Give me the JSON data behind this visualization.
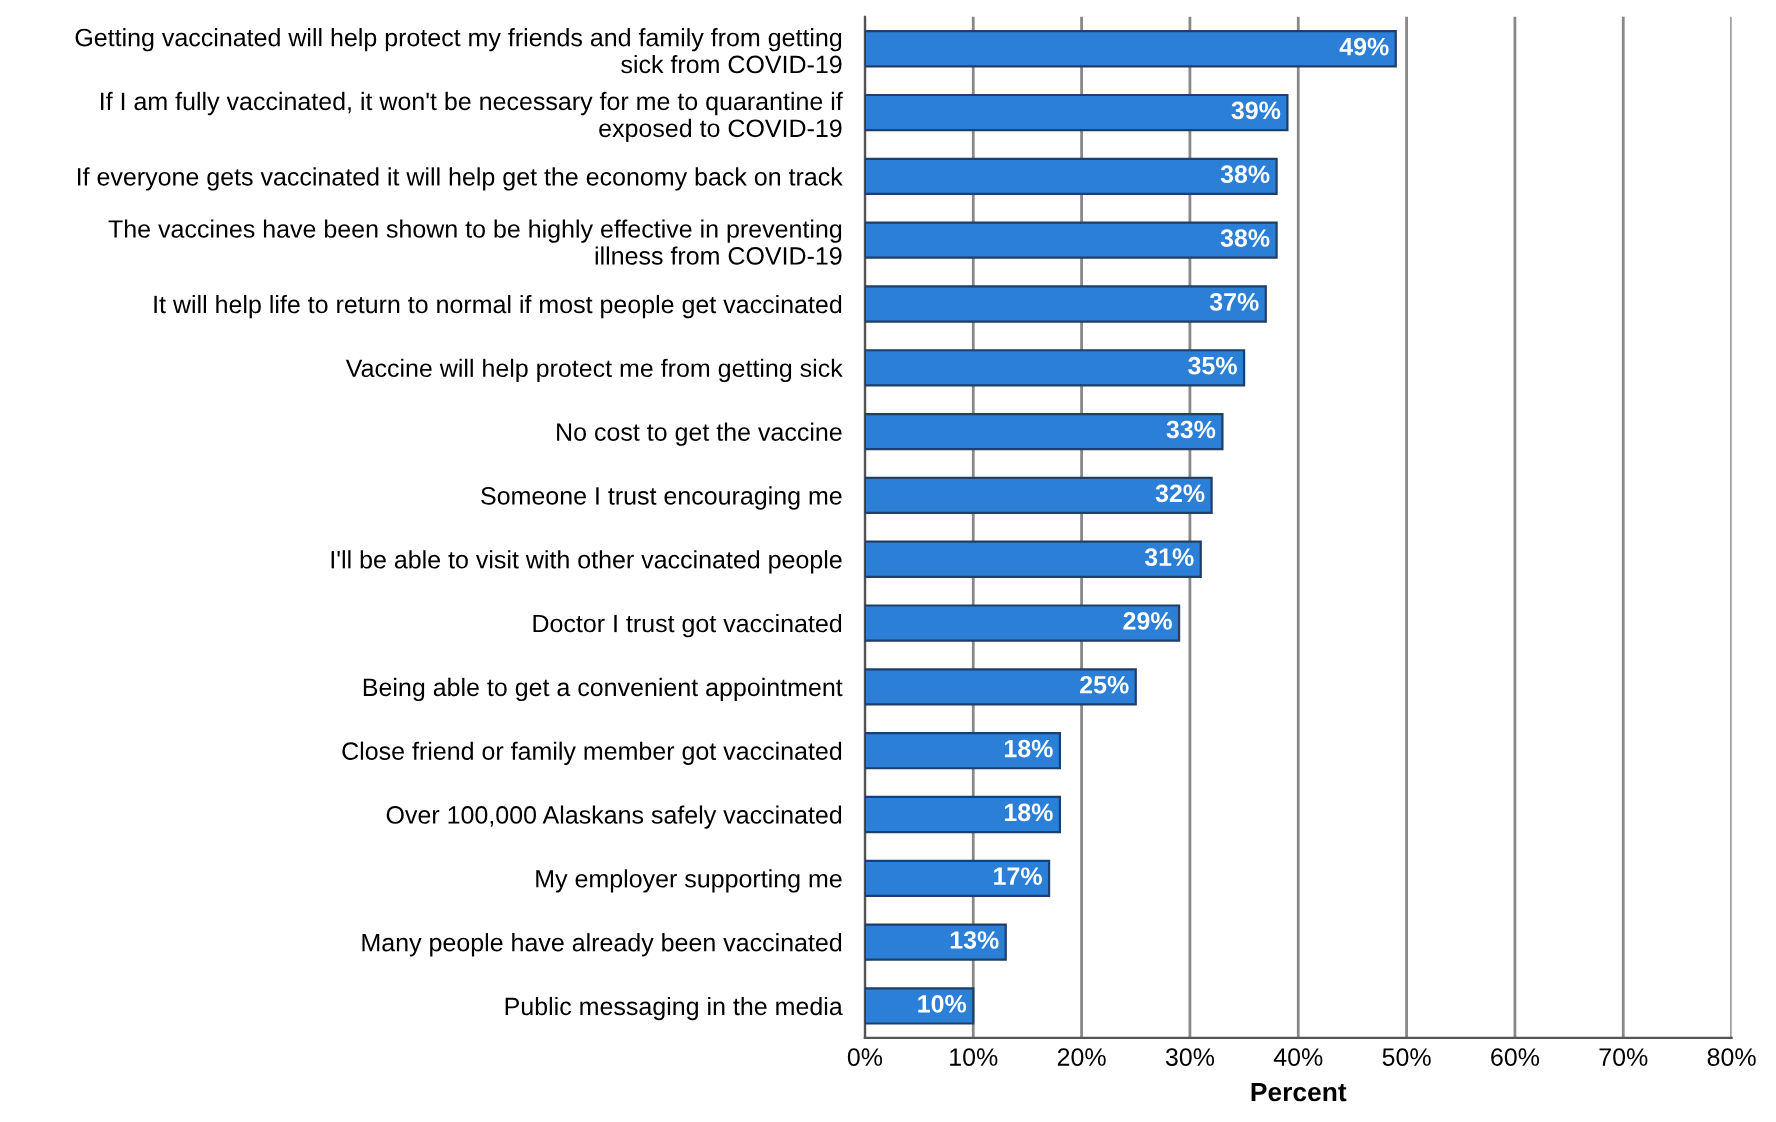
{
  "chart_data": {
    "type": "bar",
    "orientation": "horizontal",
    "xlabel": "Percent",
    "categories": [
      "Getting vaccinated will help protect my friends and family from getting\nsick from COVID-19",
      "If I am fully vaccinated, it won't be necessary for me to quarantine if\nexposed to COVID-19",
      "If everyone gets vaccinated it will help get the economy back on track",
      "The vaccines have been shown to be highly effective in preventing\nillness from COVID-19",
      "It will help life to return to normal if most people get vaccinated",
      "Vaccine will help protect me from getting sick",
      "No cost to get the vaccine",
      "Someone I trust encouraging me",
      "I'll be able to visit with other vaccinated people",
      "Doctor I trust got vaccinated",
      "Being able to get a convenient appointment",
      "Close friend or family member got vaccinated",
      "Over 100,000 Alaskans safely vaccinated",
      "My employer supporting me",
      "Many people have already been vaccinated",
      "Public messaging in the media"
    ],
    "values": [
      49,
      39,
      38,
      38,
      37,
      35,
      33,
      32,
      31,
      29,
      25,
      18,
      18,
      17,
      13,
      10
    ],
    "value_labels": [
      "49%",
      "39%",
      "38%",
      "38%",
      "37%",
      "35%",
      "33%",
      "32%",
      "31%",
      "29%",
      "25%",
      "18%",
      "18%",
      "17%",
      "13%",
      "10%"
    ],
    "color": "#2b7fd6",
    "xlim": [
      0,
      80
    ],
    "xticks": [
      {
        "value": 0,
        "label": "0%"
      },
      {
        "value": 10,
        "label": "10%"
      },
      {
        "value": 20,
        "label": "20%"
      },
      {
        "value": 30,
        "label": "30%"
      },
      {
        "value": 40,
        "label": "40%"
      },
      {
        "value": 50,
        "label": "50%"
      },
      {
        "value": 60,
        "label": "60%"
      },
      {
        "value": 70,
        "label": "70%"
      },
      {
        "value": 80,
        "label": "80%"
      }
    ],
    "grid": "x",
    "legend": false
  }
}
